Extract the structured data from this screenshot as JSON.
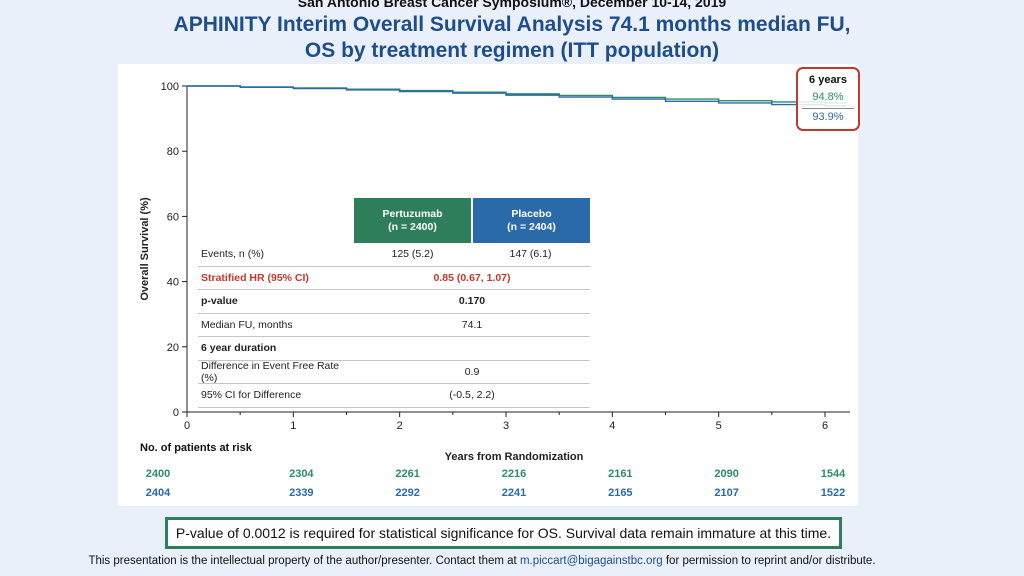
{
  "header": {
    "conference": "San Antonio Breast Cancer Symposium®, December 10-14, 2019",
    "title_line1": "APHINITY Interim Overall Survival Analysis 74.1 months median FU,",
    "title_line2": "OS by treatment regimen (ITT population)"
  },
  "chart_data": {
    "type": "line",
    "xlabel": "Years from Randomization",
    "ylabel": "Overall Survival (%)",
    "xlim": [
      0,
      6.2
    ],
    "ylim": [
      0,
      100
    ],
    "x_ticks": [
      0,
      1,
      2,
      3,
      4,
      5,
      6
    ],
    "y_ticks": [
      0,
      20,
      40,
      60,
      80,
      100
    ],
    "grid": false,
    "series": [
      {
        "color": "#2e8b6b",
        "x": [
          0,
          0.5,
          1,
          1.5,
          2,
          2.5,
          3,
          3.5,
          4,
          4.5,
          5,
          5.5,
          6,
          6.2
        ],
        "y": [
          100,
          99.7,
          99.4,
          99.0,
          98.6,
          98.1,
          97.6,
          97.1,
          96.5,
          96.0,
          95.5,
          95.1,
          94.8,
          94.7
        ]
      },
      {
        "color": "#2b6aa9",
        "x": [
          0,
          0.5,
          1,
          1.5,
          2,
          2.5,
          3,
          3.5,
          4,
          4.5,
          5,
          5.5,
          6,
          6.2
        ],
        "y": [
          100,
          99.6,
          99.2,
          98.8,
          98.3,
          97.8,
          97.2,
          96.6,
          96.0,
          95.3,
          94.8,
          94.3,
          93.9,
          93.7
        ]
      }
    ],
    "annotation": {
      "title": "6 years",
      "value1": "94.8%",
      "value2": "93.9%"
    },
    "at_risk": {
      "label": "No. of patients at risk",
      "rows": [
        {
          "color": "#2e8b6b",
          "values": [
            "2400",
            "2304",
            "2261",
            "2216",
            "2161",
            "2090",
            "1544"
          ]
        },
        {
          "color": "#2b6aa9",
          "values": [
            "2404",
            "2339",
            "2292",
            "2241",
            "2165",
            "2107",
            "1522"
          ]
        }
      ]
    }
  },
  "table": {
    "col1_name": "Pertuzumab",
    "col1_n": "(n = 2400)",
    "col2_name": "Placebo",
    "col2_n": "(n = 2404)",
    "rows": [
      {
        "label": "Events, n (%)",
        "v1": "125 (5.2)",
        "v2": "147 (6.1)"
      },
      {
        "label": "Stratified HR (95% CI)",
        "value": "0.85 (0.67, 1.07)"
      },
      {
        "label": "p-value",
        "value": "0.170"
      },
      {
        "label": "Median FU, months",
        "value": "74.1"
      },
      {
        "label": "6 year duration",
        "value": ""
      },
      {
        "label": "Difference in Event Free Rate (%)",
        "value": "0.9"
      },
      {
        "label": "95% CI for Difference",
        "value": "(-0.5, 2.2)"
      }
    ]
  },
  "note": "P-value of 0.0012 is required for statistical significance for OS. Survival data remain immature at this time.",
  "footer": {
    "text_before": "This presentation is the intellectual property of the author/presenter. Contact them at ",
    "email": "m.piccart@bigagainstbc.org",
    "text_after": " for permission to reprint and/or distribute."
  }
}
